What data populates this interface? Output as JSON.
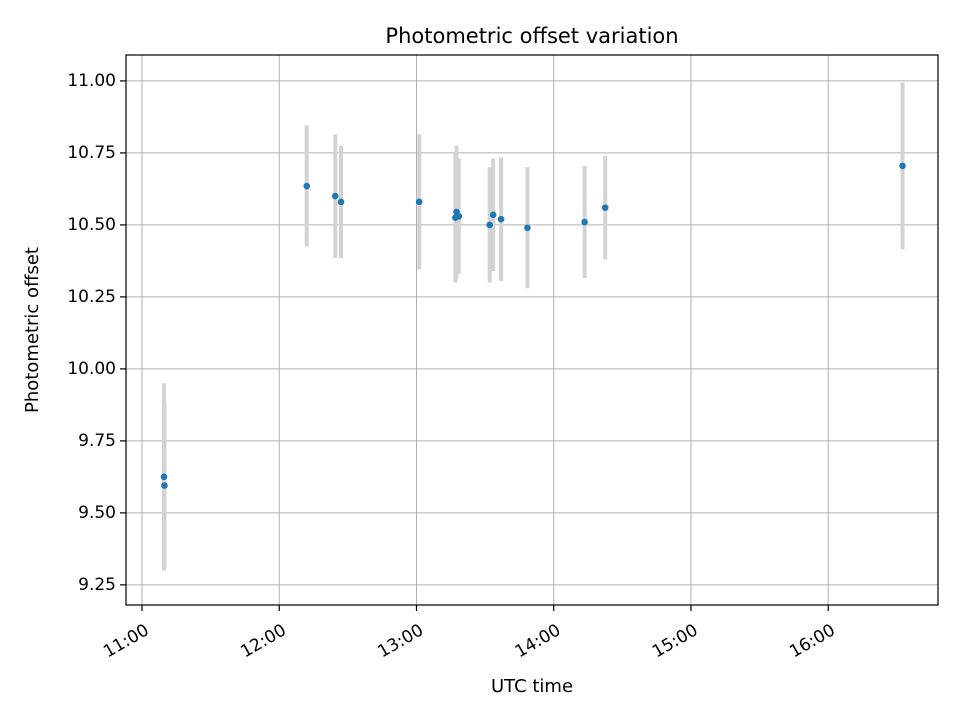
{
  "chart_data": {
    "type": "scatter",
    "title": "Photometric offset variation",
    "xlabel": "UTC time",
    "ylabel": "Photometric offset",
    "grid": true,
    "x_axis_type": "time",
    "xlim": [
      "10:53",
      "16:48"
    ],
    "ylim": [
      9.18,
      11.09
    ],
    "x_ticks": [
      "11:00",
      "12:00",
      "13:00",
      "14:00",
      "15:00",
      "16:00"
    ],
    "y_ticks": [
      9.25,
      9.5,
      9.75,
      10.0,
      10.25,
      10.5,
      10.75,
      11.0
    ],
    "y_tick_labels": [
      "9.25",
      "9.50",
      "9.75",
      "10.00",
      "10.25",
      "10.50",
      "10.75",
      "11.00"
    ],
    "marker_color": "#1f77b4",
    "errorbar_color": "#d3d3d3",
    "points": [
      {
        "time": "11:09:36",
        "y": 9.625,
        "err": 0.325
      },
      {
        "time": "11:09:48",
        "y": 9.595,
        "err": 0.285
      },
      {
        "time": "12:12:00",
        "y": 10.635,
        "err": 0.21
      },
      {
        "time": "12:24:30",
        "y": 10.6,
        "err": 0.215
      },
      {
        "time": "12:27:00",
        "y": 10.58,
        "err": 0.195
      },
      {
        "time": "13:01:12",
        "y": 10.58,
        "err": 0.235
      },
      {
        "time": "13:17:00",
        "y": 10.525,
        "err": 0.225
      },
      {
        "time": "13:17:30",
        "y": 10.545,
        "err": 0.23
      },
      {
        "time": "13:18:30",
        "y": 10.53,
        "err": 0.2
      },
      {
        "time": "13:32:00",
        "y": 10.5,
        "err": 0.2
      },
      {
        "time": "13:33:30",
        "y": 10.535,
        "err": 0.195
      },
      {
        "time": "13:37:00",
        "y": 10.52,
        "err": 0.215
      },
      {
        "time": "13:48:30",
        "y": 10.49,
        "err": 0.21
      },
      {
        "time": "14:13:30",
        "y": 10.51,
        "err": 0.195
      },
      {
        "time": "14:22:30",
        "y": 10.56,
        "err": 0.18
      },
      {
        "time": "16:32:30",
        "y": 10.705,
        "err": 0.29
      }
    ]
  }
}
